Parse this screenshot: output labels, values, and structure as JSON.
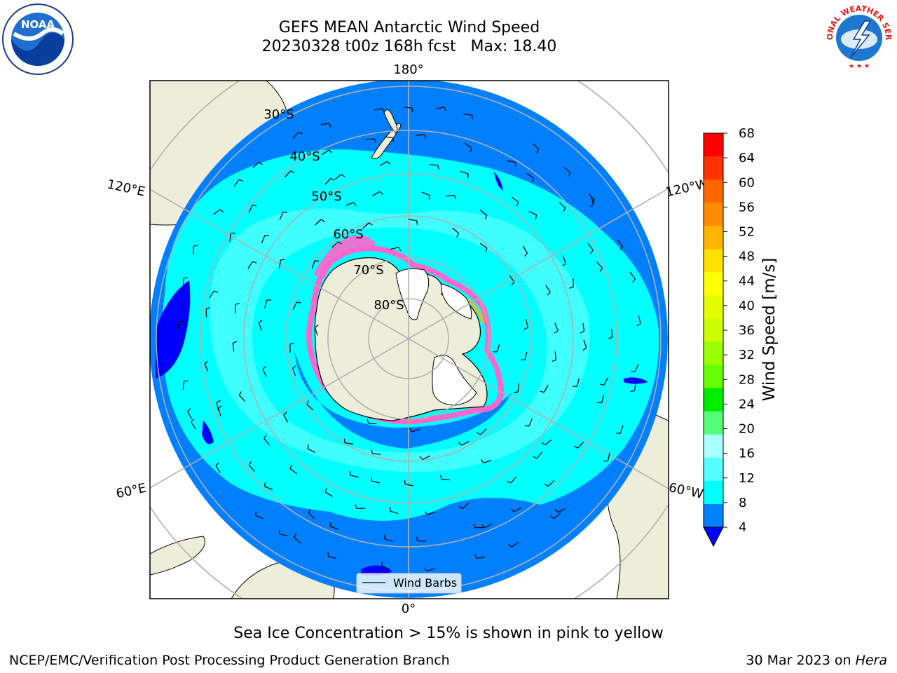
{
  "title_line1": "GEFS MEAN Antarctic Wind Speed",
  "title_line2": "20230328 t00z 168h fcst   Max: 18.40",
  "caption": "Sea Ice Concentration > 15% is shown in pink to yellow",
  "footer_left": "NCEP/EMC/Verification Post Processing Product Generation Branch",
  "footer_right_prefix": "30 Mar 2023 on ",
  "footer_right_machine": "Hera",
  "legend_label": "Wind Barbs",
  "colorbar": {
    "title": "Wind Speed [m/s]",
    "ticks": [
      "68",
      "64",
      "60",
      "56",
      "52",
      "48",
      "44",
      "40",
      "36",
      "32",
      "28",
      "24",
      "20",
      "16",
      "12",
      "8",
      "4"
    ],
    "colors_top_to_bottom": [
      "#ff0000",
      "#ff3300",
      "#ff6600",
      "#ff8c00",
      "#ffb400",
      "#ffe100",
      "#ffff00",
      "#e6ff00",
      "#ccff00",
      "#99ff00",
      "#66ff00",
      "#00ee00",
      "#55ff77",
      "#aaffff",
      "#55ffff",
      "#00ffff",
      "#0080ff"
    ],
    "extend_min_color": "#0000ff"
  },
  "longitude_labels": {
    "top": "180°",
    "bottom": "0°",
    "upper_left": "120°E",
    "lower_left": "60°E",
    "upper_right": "120°W",
    "lower_right": "60°W"
  },
  "latitude_labels": [
    "30°S",
    "40°S",
    "50°S",
    "60°S",
    "70°S",
    "80°S"
  ],
  "logos": {
    "left": "NOAA",
    "right": "NATIONAL WEATHER SERVICE"
  },
  "map_colors": {
    "land": "#eeedda",
    "ice_land": "#ffffff",
    "ocean_low": "#0080ff",
    "ocean_mid": "#00ffff",
    "ocean_high": "#55ffff",
    "pockets": "#0000ff",
    "sea_ice": "#ff66cc"
  }
}
